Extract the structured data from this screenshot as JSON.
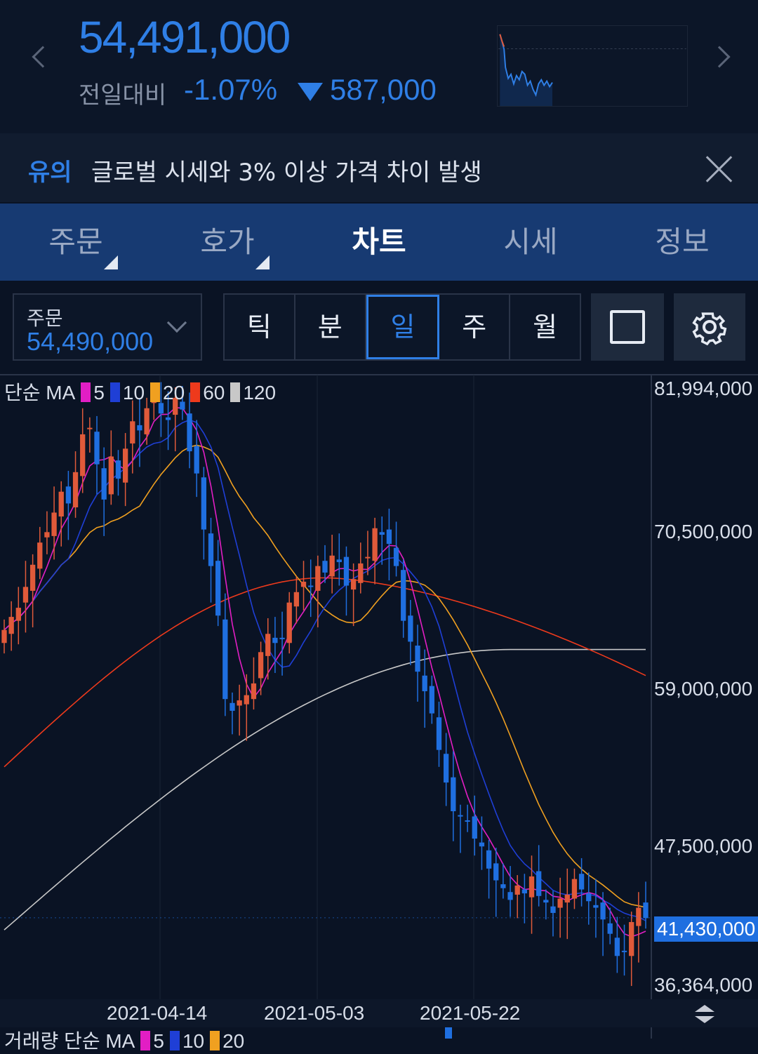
{
  "header": {
    "price": "54,491,000",
    "change_label": "전일대비",
    "change_pct": "-1.07%",
    "change_amount": "587,000",
    "direction_icon": "triangle-down",
    "colors": {
      "down": "#2f7fe6",
      "up": "#e05a3a"
    }
  },
  "notice": {
    "tag": "유의",
    "text": "글로벌 시세와 3% 이상 가격 차이 발생"
  },
  "tabs": [
    {
      "label": "주문",
      "has_dropdown": true
    },
    {
      "label": "호가",
      "has_dropdown": true
    },
    {
      "label": "차트",
      "active": true
    },
    {
      "label": "시세"
    },
    {
      "label": "정보"
    }
  ],
  "toolbar": {
    "order_label": "주문",
    "order_value": "54,490,000",
    "periods": [
      "틱",
      "분",
      "일",
      "주",
      "월"
    ],
    "active_period": "일"
  },
  "ma_legend": {
    "prefix": "단순 MA",
    "items": [
      {
        "label": "5",
        "color": "#e21ec4"
      },
      {
        "label": "10",
        "color": "#1f3fd6"
      },
      {
        "label": "20",
        "color": "#f0a020"
      },
      {
        "label": "60",
        "color": "#ee3a1c"
      },
      {
        "label": "120",
        "color": "#c8c8c8"
      }
    ]
  },
  "volume_legend": {
    "prefix": "거래량 단순 MA",
    "items": [
      {
        "label": "5",
        "color": "#e21ec4"
      },
      {
        "label": "10",
        "color": "#1f3fd6"
      },
      {
        "label": "20",
        "color": "#f0a020"
      }
    ]
  },
  "chart_data": {
    "type": "candlestick",
    "y_ticks": [
      "81,994,000",
      "70,500,000",
      "59,000,000",
      "47,500,000",
      "36,364,000"
    ],
    "current_price_label": "41,430,000",
    "x_ticks": [
      "2021-04-14",
      "2021-05-03",
      "2021-05-22"
    ],
    "ylim": [
      36364000,
      81994000
    ],
    "up_color": "#e05a3a",
    "down_color": "#1f6fe0"
  }
}
